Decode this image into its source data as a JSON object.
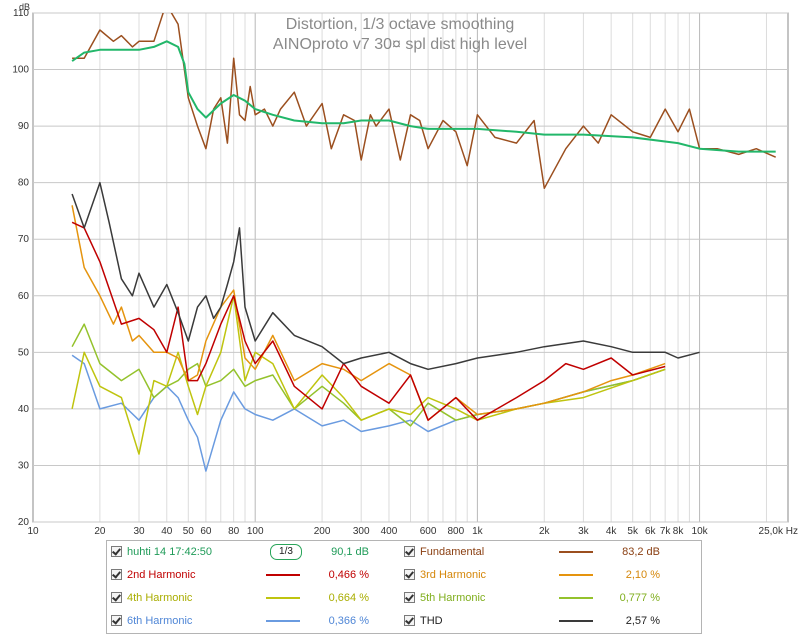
{
  "chart_data": {
    "type": "line",
    "title": "Distortion, 1/3 octave smoothing",
    "subtitle": "AINOproto v7 30¤ spl dist high level",
    "ylabel": "dB",
    "xunit": "Hz",
    "xscale": "log",
    "xlim": [
      10,
      25000
    ],
    "ylim": [
      20,
      110
    ],
    "grid": true,
    "legend_placement": "bottom",
    "yticks": [
      20,
      30,
      40,
      50,
      60,
      70,
      80,
      90,
      100,
      110
    ],
    "xticks": [
      {
        "v": 10,
        "t": "10"
      },
      {
        "v": 20,
        "t": "20"
      },
      {
        "v": 30,
        "t": "30"
      },
      {
        "v": 40,
        "t": "40"
      },
      {
        "v": 50,
        "t": "50"
      },
      {
        "v": 60,
        "t": "60"
      },
      {
        "v": 80,
        "t": "80"
      },
      {
        "v": 100,
        "t": "100"
      },
      {
        "v": 200,
        "t": "200"
      },
      {
        "v": 300,
        "t": "300"
      },
      {
        "v": 400,
        "t": "400"
      },
      {
        "v": 600,
        "t": "600"
      },
      {
        "v": 800,
        "t": "800"
      },
      {
        "v": 1000,
        "t": "1k"
      },
      {
        "v": 2000,
        "t": "2k"
      },
      {
        "v": 3000,
        "t": "3k"
      },
      {
        "v": 4000,
        "t": "4k"
      },
      {
        "v": 5000,
        "t": "5k"
      },
      {
        "v": 6000,
        "t": "6k"
      },
      {
        "v": 7000,
        "t": "7k"
      },
      {
        "v": 8000,
        "t": "8k"
      },
      {
        "v": 10000,
        "t": "10k"
      },
      {
        "v": 25000,
        "t": "25,0k Hz"
      }
    ],
    "series": [
      {
        "name": "huhti 14 17:42:50",
        "color": "#22b76a",
        "x": [
          15,
          17,
          20,
          25,
          30,
          35,
          40,
          45,
          48,
          50,
          55,
          60,
          70,
          80,
          90,
          100,
          120,
          150,
          200,
          250,
          300,
          400,
          500,
          600,
          800,
          1000,
          1500,
          2000,
          3000,
          5000,
          8000,
          10000,
          15000,
          22000
        ],
        "y": [
          101.5,
          103,
          103.5,
          103.5,
          103.5,
          104,
          105,
          104,
          101,
          96,
          93,
          91.5,
          94,
          95.5,
          94.5,
          93,
          92,
          91,
          90.5,
          90.5,
          91,
          91,
          90,
          89.5,
          89.5,
          89.5,
          89,
          88.5,
          88.5,
          88,
          87,
          86,
          85.5,
          85.5
        ]
      },
      {
        "name": "Fundamental",
        "color": "#9b4f1f",
        "x": [
          15,
          17,
          20,
          23,
          25,
          28,
          30,
          35,
          40,
          42,
          45,
          48,
          50,
          55,
          60,
          65,
          70,
          75,
          80,
          85,
          90,
          95,
          100,
          110,
          120,
          130,
          150,
          170,
          200,
          220,
          250,
          280,
          300,
          330,
          350,
          400,
          450,
          500,
          550,
          600,
          700,
          800,
          900,
          1000,
          1200,
          1500,
          1800,
          2000,
          2500,
          3000,
          3500,
          4000,
          5000,
          6000,
          7000,
          8000,
          9000,
          10000,
          12000,
          15000,
          18000,
          22000
        ],
        "y": [
          102,
          102,
          107,
          105,
          106,
          104,
          105,
          105,
          112,
          110,
          108,
          100,
          95,
          90,
          86,
          93,
          95,
          87,
          102,
          92,
          91,
          97,
          92,
          93,
          90,
          93,
          96,
          90,
          94,
          86,
          92,
          91,
          84,
          92,
          90,
          93,
          84,
          92,
          91,
          86,
          91,
          89,
          83,
          92,
          88,
          87,
          91,
          79,
          86,
          90,
          87,
          92,
          89,
          88,
          93,
          89,
          93,
          86,
          86,
          85,
          86,
          84.5
        ]
      },
      {
        "name": "2nd Harmonic",
        "color": "#c00000",
        "x": [
          15,
          17,
          20,
          25,
          30,
          35,
          40,
          45,
          50,
          55,
          60,
          70,
          80,
          90,
          100,
          120,
          150,
          200,
          250,
          300,
          400,
          500,
          600,
          800,
          1000,
          1500,
          2000,
          2500,
          3000,
          4000,
          5000,
          7000
        ],
        "y": [
          73,
          72,
          66,
          55,
          56,
          54,
          50,
          58,
          45,
          45,
          48,
          55,
          60,
          52,
          48,
          52,
          44,
          40,
          48,
          44,
          41,
          46,
          38,
          42,
          38,
          42,
          45,
          48,
          47,
          49,
          46,
          47.5
        ]
      },
      {
        "name": "3rd Harmonic",
        "color": "#e5940e",
        "x": [
          15,
          17,
          20,
          23,
          25,
          28,
          30,
          35,
          40,
          45,
          50,
          55,
          60,
          70,
          80,
          90,
          100,
          120,
          150,
          200,
          250,
          300,
          400,
          500,
          600,
          800,
          1000,
          1500,
          2000,
          3000,
          4000,
          5000,
          7000
        ],
        "y": [
          76,
          65,
          60,
          55,
          58,
          52,
          53,
          50,
          50,
          49,
          45,
          46,
          52,
          58,
          61,
          49,
          47,
          53,
          45,
          48,
          47,
          45,
          48,
          46,
          38,
          42,
          39,
          40,
          41,
          43,
          45,
          46,
          48
        ]
      },
      {
        "name": "4th Harmonic",
        "color": "#bfc40f",
        "x": [
          15,
          17,
          20,
          25,
          30,
          35,
          40,
          45,
          50,
          55,
          60,
          70,
          80,
          90,
          100,
          120,
          150,
          200,
          250,
          300,
          400,
          500,
          600,
          800,
          1000,
          1500,
          2000,
          3000,
          5000,
          7000
        ],
        "y": [
          40,
          50,
          44,
          42,
          32,
          45,
          44,
          50,
          44,
          39,
          44,
          50,
          60,
          45,
          50,
          48,
          40,
          46,
          42,
          38,
          40,
          39,
          42,
          40,
          38,
          40,
          41,
          42,
          45,
          47
        ]
      },
      {
        "name": "5th Harmonic",
        "color": "#94c22c",
        "x": [
          15,
          17,
          20,
          25,
          30,
          35,
          40,
          45,
          50,
          55,
          60,
          70,
          80,
          90,
          100,
          120,
          150,
          200,
          250,
          300,
          400,
          500,
          600,
          800,
          1000,
          1500,
          2000,
          3000,
          5000,
          7000
        ],
        "y": [
          51,
          55,
          48,
          45,
          47,
          42,
          44,
          45,
          47,
          48,
          44,
          45,
          47,
          44,
          45,
          46,
          40,
          44,
          41,
          38,
          40,
          37,
          41,
          38,
          39,
          40,
          41,
          43,
          45,
          47
        ]
      },
      {
        "name": "6th Harmonic",
        "color": "#6a9be0",
        "x": [
          15,
          17,
          20,
          25,
          30,
          35,
          40,
          45,
          50,
          55,
          60,
          70,
          80,
          90,
          100,
          120,
          150,
          200,
          250,
          300,
          400,
          500,
          600,
          800,
          1000,
          1500,
          2000,
          3000,
          5000,
          7000
        ],
        "y": [
          49.5,
          48,
          40,
          41,
          38,
          42,
          44,
          42,
          38,
          35,
          29,
          38,
          43,
          40,
          39,
          38,
          40,
          37,
          38,
          36,
          37,
          38,
          36,
          38,
          39,
          40,
          41,
          43,
          45,
          47
        ]
      },
      {
        "name": "THD",
        "color": "#3a3a3a",
        "x": [
          15,
          17,
          20,
          22,
          25,
          28,
          30,
          35,
          40,
          45,
          50,
          55,
          60,
          65,
          70,
          75,
          80,
          85,
          90,
          100,
          120,
          150,
          200,
          250,
          300,
          400,
          500,
          600,
          800,
          1000,
          1500,
          2000,
          3000,
          4000,
          5000,
          6000,
          7000,
          8000,
          10000
        ],
        "y": [
          78,
          72,
          80,
          73,
          63,
          60,
          64,
          58,
          62,
          57,
          52,
          58,
          60,
          56,
          58,
          62,
          66,
          72,
          58,
          52,
          57,
          53,
          51,
          48,
          49,
          50,
          48,
          47,
          48,
          49,
          50,
          51,
          52,
          51,
          50,
          50,
          50,
          49,
          50
        ]
      }
    ]
  },
  "legend": {
    "rows": [
      {
        "label": "huhti 14 17:42:50",
        "value": "90,1 dB",
        "color": "#22b76a",
        "smoothing_label": "1/3"
      },
      {
        "label": "Fundamental",
        "value": "83,2 dB",
        "color": "#9b4f1f"
      },
      {
        "label": "2nd Harmonic",
        "value": "0,466 %",
        "color": "#c00000"
      },
      {
        "label": "3rd Harmonic",
        "value": "2,10 %",
        "color": "#e5940e"
      },
      {
        "label": "4th Harmonic",
        "value": "0,664 %",
        "color": "#bfc40f"
      },
      {
        "label": "5th Harmonic",
        "value": "0,777 %",
        "color": "#94c22c"
      },
      {
        "label": "6th Harmonic",
        "value": "0,366 %",
        "color": "#6a9be0"
      },
      {
        "label": "THD",
        "value": "2,57 %",
        "color": "#3a3a3a"
      }
    ]
  }
}
